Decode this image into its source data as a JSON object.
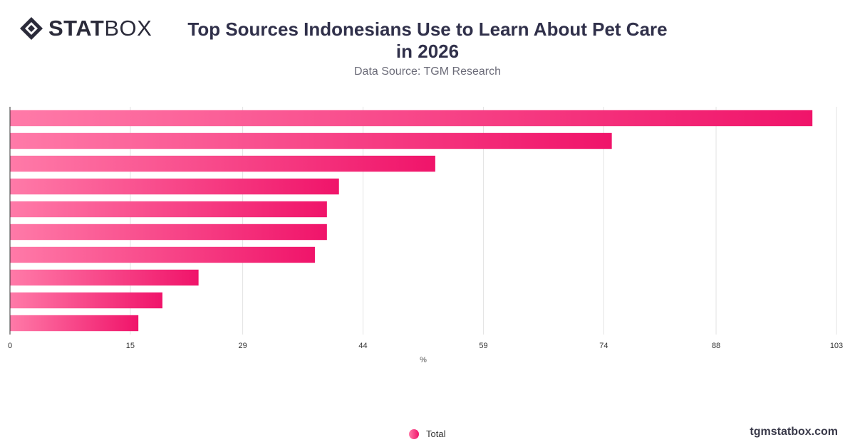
{
  "brand": {
    "logo_strong": "STAT",
    "logo_light": "BOX",
    "site": "tgmstatbox.com"
  },
  "header": {
    "title_line1": "Top Sources Indonesians Use to Learn About Pet Care",
    "title_line2": "in 2026",
    "subtitle": "Data Source: TGM Research"
  },
  "colors": {
    "bar_start": "#ff7aa8",
    "bar_end": "#f0146a",
    "grid": "#e3e3e3",
    "axis": "#333333"
  },
  "legend": {
    "label": "Total"
  },
  "chart_data": {
    "type": "bar",
    "orientation": "horizontal",
    "title": "Top Sources Indonesians Use to Learn About Pet Care in 2026",
    "subtitle": "Data Source: TGM Research",
    "xlabel": "%",
    "ylabel": "",
    "xlim": [
      0,
      103
    ],
    "xticks": [
      "0",
      "15",
      "29",
      "44",
      "59",
      "74",
      "88",
      "103"
    ],
    "xtick_values": [
      0,
      15,
      29,
      44,
      59,
      74,
      88,
      103
    ],
    "grid": true,
    "legend_position": "bottom-center",
    "categories": [
      "",
      "",
      "",
      "",
      "",
      "",
      "",
      "",
      "",
      ""
    ],
    "series": [
      {
        "name": "Total",
        "values": [
          100,
          75,
          53,
          41,
          39.5,
          39.5,
          38,
          23.5,
          19,
          16
        ]
      }
    ]
  }
}
